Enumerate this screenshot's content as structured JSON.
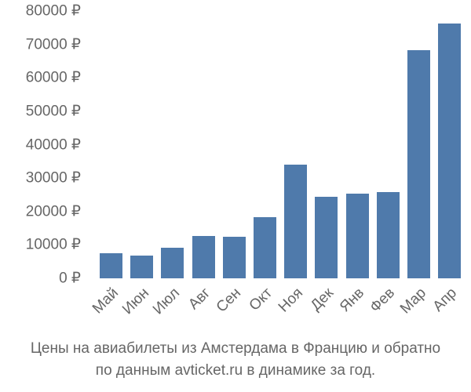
{
  "chart_data": {
    "type": "bar",
    "title": "Цены на авиабилеты из Амстердама в Францию и обратно по данным avticket.ru в динамике за год.",
    "xlabel": "",
    "ylabel": "",
    "ylim": [
      0,
      80000
    ],
    "y_ticks": [
      "0 ₽",
      "10000 ₽",
      "20000 ₽",
      "30000 ₽",
      "40000 ₽",
      "50000 ₽",
      "60000 ₽",
      "70000 ₽",
      "80000 ₽"
    ],
    "categories": [
      "Май",
      "Июн",
      "Июл",
      "Авг",
      "Сен",
      "Окт",
      "Ноя",
      "Дек",
      "Янв",
      "Фев",
      "Мар",
      "Апр"
    ],
    "values": [
      7500,
      6800,
      9200,
      12700,
      12400,
      18300,
      34000,
      24400,
      25300,
      25800,
      68300,
      76300
    ],
    "grid": false,
    "bar_color": "#4f7aab"
  },
  "caption": {
    "line1": "Цены на авиабилеты из Амстердама в Францию и обратно",
    "line2": "по данным avticket.ru в динамике за год."
  }
}
